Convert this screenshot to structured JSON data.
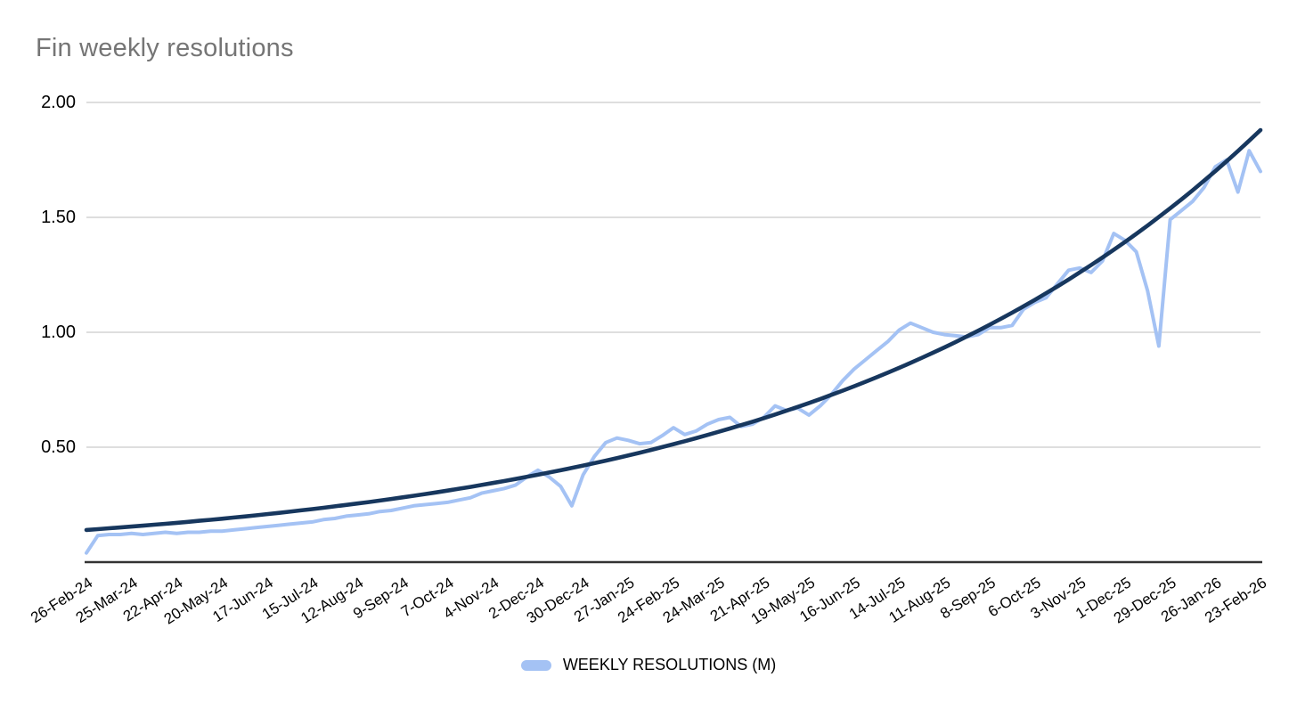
{
  "page": {
    "background": "#ffffff"
  },
  "colors": {
    "title": "#757575",
    "grid": "#d9d9d9",
    "axis_line": "#333333",
    "tick_text": "#000000",
    "series": "#a4c2f4",
    "trend": "#17375e"
  },
  "legend": {
    "label": "WEEKLY RESOLUTIONS (M)",
    "swatch_color": "#a4c2f4"
  },
  "chart_data": {
    "type": "line",
    "title": "Fin weekly resolutions",
    "xlabel": "",
    "ylabel": "",
    "ylim": [
      0,
      2.0
    ],
    "y_ticks": [
      0.5,
      1.0,
      1.5,
      2.0
    ],
    "y_tick_labels": [
      "0.50",
      "1.00",
      "1.50",
      "2.00"
    ],
    "grid": "horizontal",
    "legend_position": "bottom",
    "x_unit": "week",
    "x_tick_interval_weeks": 4,
    "x_tick_labels": [
      "26-Feb-24",
      "25-Mar-24",
      "22-Apr-24",
      "20-May-24",
      "17-Jun-24",
      "15-Jul-24",
      "12-Aug-24",
      "9-Sep-24",
      "7-Oct-24",
      "4-Nov-24",
      "2-Dec-24",
      "30-Dec-24",
      "27-Jan-25",
      "24-Feb-25",
      "24-Mar-25",
      "21-Apr-25",
      "19-May-25",
      "16-Jun-25",
      "14-Jul-25",
      "11-Aug-25",
      "8-Sep-25",
      "6-Oct-25",
      "3-Nov-25",
      "1-Dec-25",
      "29-Dec-25",
      "26-Jan-26",
      "23-Feb-26"
    ],
    "series": [
      {
        "name": "WEEKLY RESOLUTIONS (M)",
        "type": "line",
        "color": "#a4c2f4",
        "values": [
          0.04,
          0.115,
          0.12,
          0.12,
          0.125,
          0.12,
          0.125,
          0.13,
          0.125,
          0.13,
          0.13,
          0.135,
          0.135,
          0.14,
          0.145,
          0.15,
          0.155,
          0.16,
          0.165,
          0.17,
          0.175,
          0.185,
          0.19,
          0.2,
          0.205,
          0.21,
          0.22,
          0.225,
          0.235,
          0.245,
          0.25,
          0.255,
          0.26,
          0.27,
          0.28,
          0.3,
          0.31,
          0.32,
          0.335,
          0.37,
          0.4,
          0.37,
          0.33,
          0.245,
          0.38,
          0.46,
          0.52,
          0.54,
          0.53,
          0.515,
          0.52,
          0.55,
          0.585,
          0.555,
          0.57,
          0.6,
          0.62,
          0.63,
          0.59,
          0.6,
          0.63,
          0.68,
          0.66,
          0.67,
          0.64,
          0.68,
          0.73,
          0.79,
          0.84,
          0.88,
          0.92,
          0.96,
          1.01,
          1.04,
          1.02,
          1.0,
          0.99,
          0.985,
          0.98,
          0.99,
          1.02,
          1.02,
          1.03,
          1.1,
          1.13,
          1.15,
          1.21,
          1.27,
          1.28,
          1.26,
          1.31,
          1.43,
          1.4,
          1.35,
          1.18,
          0.94,
          1.49,
          1.53,
          1.57,
          1.63,
          1.72,
          1.75,
          1.61,
          1.79,
          1.7
        ]
      },
      {
        "name": "trendline",
        "type": "exponential-trendline",
        "color": "#17375e",
        "start": 0.14,
        "end": 1.88
      }
    ]
  }
}
